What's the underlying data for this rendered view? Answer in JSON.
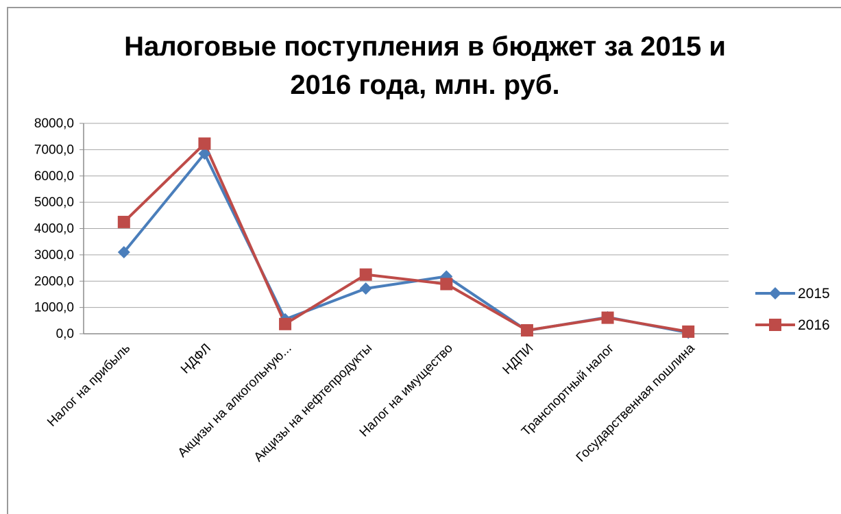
{
  "chart_data": {
    "type": "line",
    "title_line1": "Налоговые поступления в бюджет за 2015 и",
    "title_line2": "2016 года, млн. руб.",
    "categories": [
      "Налог на прибыль",
      "НДФЛ",
      "Акцизы на алкогольную...",
      "Акцизы на нефтепродукты",
      "Налог на имущество",
      "НДПИ",
      "Транспортный налог",
      "Государственная пошлина"
    ],
    "ytick_labels": [
      "0,0",
      "1000,0",
      "2000,0",
      "3000,0",
      "4000,0",
      "5000,0",
      "6000,0",
      "7000,0",
      "8000,0"
    ],
    "ylim": [
      0,
      8000
    ],
    "grid": true,
    "legend_position": "right",
    "series": [
      {
        "name": "2015",
        "color": "#4a7ebb",
        "marker": "diamond",
        "values": [
          3100,
          6850,
          550,
          1720,
          2180,
          120,
          630,
          40
        ]
      },
      {
        "name": "2016",
        "color": "#be4b48",
        "marker": "square",
        "values": [
          4250,
          7230,
          370,
          2250,
          1890,
          130,
          610,
          80
        ]
      }
    ]
  }
}
